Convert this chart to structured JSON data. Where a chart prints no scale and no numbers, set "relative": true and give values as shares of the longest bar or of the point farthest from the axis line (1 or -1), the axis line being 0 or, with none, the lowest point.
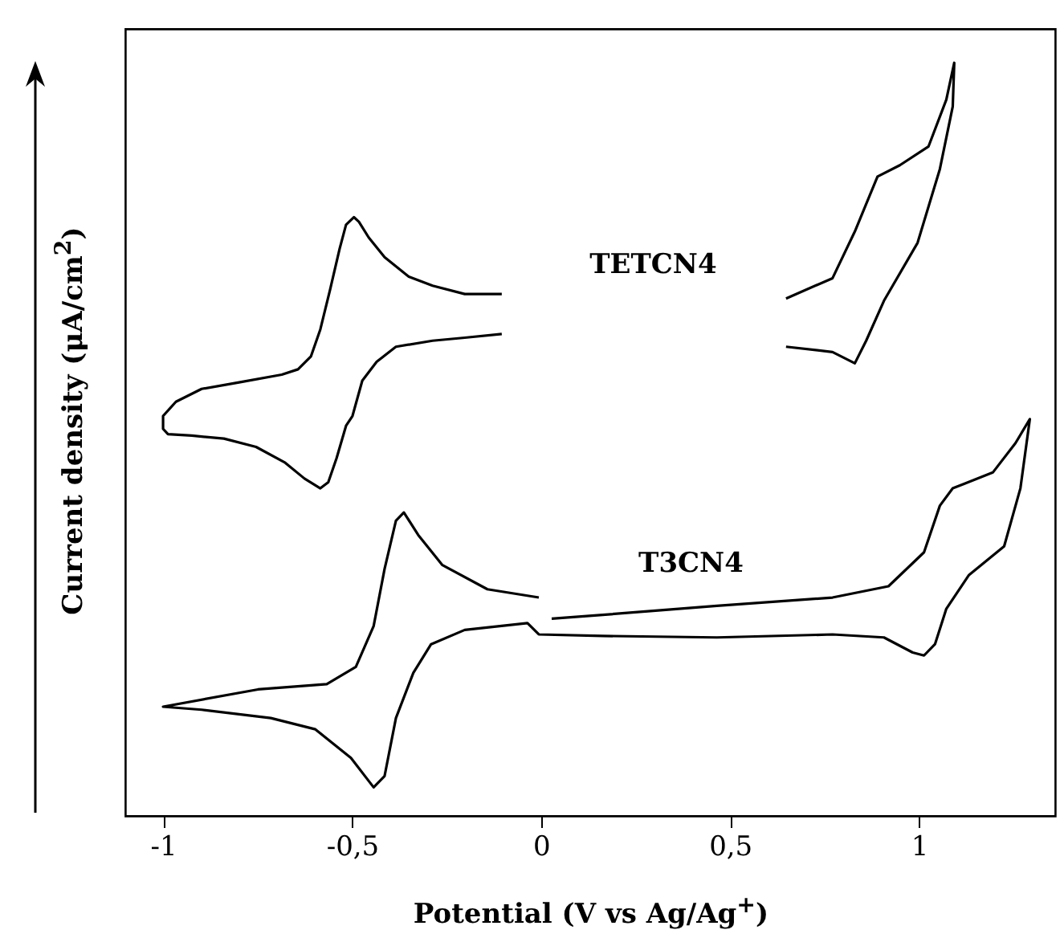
{
  "chart_data": {
    "type": "line",
    "relative": true,
    "xlabel": "Potential (V vs Ag/Ag$^{+}$)",
    "ylabel": "Current density (μA/cm$^{2}$)",
    "xlim": [
      -1.1,
      1.36
    ],
    "xticks": [
      {
        "value": -1,
        "label": "-1"
      },
      {
        "value": -0.5,
        "label": "-0,5"
      },
      0,
      {
        "value": 0.5,
        "label": "0,5"
      },
      1
    ],
    "series": [
      {
        "name": "TETCN4",
        "color": "#000000",
        "x": [
          -0.104,
          -0.202,
          -0.287,
          -0.35,
          -0.414,
          -0.456,
          -0.482,
          -0.495,
          -0.516,
          -0.533,
          -0.558,
          -0.584,
          -0.609,
          -0.643,
          -0.686,
          -0.796,
          -0.898,
          -0.966,
          -1.0,
          -1.0,
          -0.987,
          -0.924,
          -0.839,
          -0.754,
          -0.677,
          -0.626,
          -0.584,
          -0.563,
          -0.541,
          -0.516,
          -0.499,
          -0.473,
          -0.435,
          -0.384,
          -0.287,
          -0.202,
          -0.104,
          0.27,
          0.648,
          0.771,
          0.83,
          0.89,
          0.949,
          1.025,
          1.072,
          1.093,
          1.089,
          1.055,
          0.996,
          0.907,
          0.86,
          0.83,
          0.771,
          0.648
        ],
        "values": [
          0.693,
          0.693,
          0.704,
          0.716,
          0.742,
          0.768,
          0.789,
          0.795,
          0.785,
          0.753,
          0.699,
          0.646,
          0.61,
          0.593,
          0.586,
          0.576,
          0.567,
          0.55,
          0.531,
          0.514,
          0.507,
          0.505,
          0.501,
          0.49,
          0.469,
          0.448,
          0.435,
          0.443,
          0.475,
          0.518,
          0.531,
          0.578,
          0.603,
          0.623,
          0.631,
          0.635,
          0.64,
          null,
          0.687,
          0.714,
          0.776,
          0.849,
          0.864,
          0.889,
          0.951,
          1.0,
          0.942,
          0.859,
          0.761,
          0.684,
          0.631,
          0.601,
          0.616,
          0.623
        ]
      },
      {
        "name": "T3CN4",
        "color": "#000000",
        "x": [
          -0.006,
          -0.142,
          -0.261,
          -0.325,
          -0.363,
          -0.384,
          -0.414,
          -0.443,
          -0.49,
          -0.567,
          -0.749,
          -1.0,
          -0.898,
          -0.715,
          -0.597,
          -0.503,
          -0.443,
          -0.414,
          -0.384,
          -0.338,
          -0.291,
          -0.202,
          -0.036,
          -0.006,
          0.163,
          0.465,
          0.771,
          0.907,
          0.983,
          1.013,
          1.042,
          1.072,
          1.132,
          1.225,
          1.268,
          1.293,
          1.255,
          1.195,
          1.119,
          1.089,
          1.055,
          1.013,
          0.919,
          0.771,
          0.465,
          0.163,
          0.028
        ],
        "values": [
          0.29,
          0.301,
          0.333,
          0.373,
          0.403,
          0.392,
          0.328,
          0.252,
          0.198,
          0.175,
          0.168,
          0.145,
          0.141,
          0.13,
          0.115,
          0.077,
          0.038,
          0.053,
          0.13,
          0.19,
          0.228,
          0.247,
          0.256,
          0.241,
          0.239,
          0.237,
          0.241,
          0.237,
          0.217,
          0.213,
          0.228,
          0.275,
          0.32,
          0.358,
          0.435,
          0.527,
          0.495,
          0.456,
          0.441,
          0.435,
          0.412,
          0.35,
          0.305,
          0.29,
          0.279,
          0.267,
          0.262
        ]
      }
    ]
  }
}
